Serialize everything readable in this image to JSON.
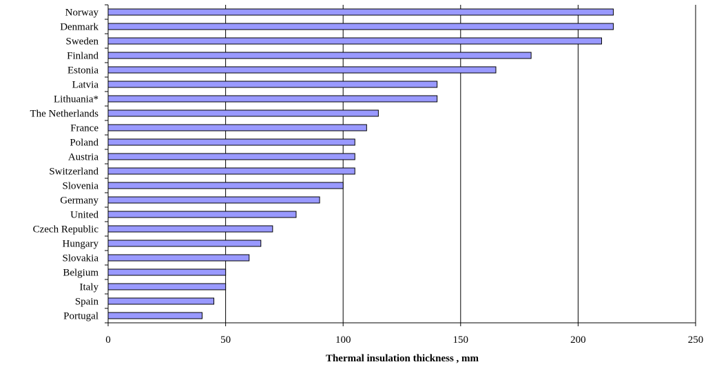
{
  "chart_data": {
    "type": "bar",
    "orientation": "horizontal",
    "title": "",
    "xlabel": "Thermal insulation thickness , mm",
    "ylabel": "",
    "xlim": [
      0,
      250
    ],
    "xticks": [
      0,
      50,
      100,
      150,
      200,
      250
    ],
    "grid": "vertical",
    "legend": "none",
    "bar_color": "#9999ff",
    "categories": [
      "Norway",
      "Denmark",
      "Sweden",
      "Finland",
      "Estonia",
      "Latvia",
      "Lithuania*",
      "The Netherlands",
      "France",
      "Poland",
      "Austria",
      "Switzerland",
      "Slovenia",
      "Germany",
      "United",
      "Czech Republic",
      "Hungary",
      "Slovakia",
      "Belgium",
      "Italy",
      "Spain",
      "Portugal"
    ],
    "values": [
      215,
      215,
      210,
      180,
      165,
      140,
      140,
      115,
      110,
      105,
      105,
      105,
      100,
      90,
      80,
      70,
      65,
      60,
      50,
      50,
      45,
      40
    ]
  }
}
